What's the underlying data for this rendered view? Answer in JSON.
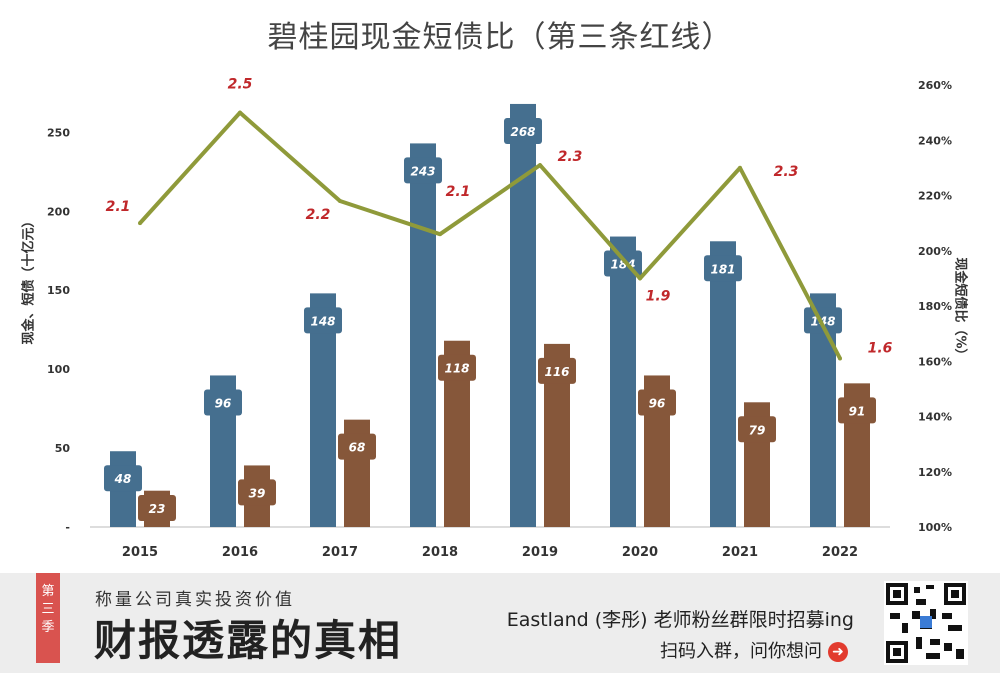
{
  "chart_data": {
    "type": "bar+line",
    "title": "碧桂园现金短债比（第三条红线）",
    "categories": [
      "2015",
      "2016",
      "2017",
      "2018",
      "2019",
      "2020",
      "2021",
      "2022"
    ],
    "series": [
      {
        "values": [
          48,
          96,
          148,
          243,
          268,
          184,
          181,
          148
        ],
        "color": "#456f8f"
      },
      {
        "values": [
          23,
          39,
          68,
          118,
          116,
          96,
          79,
          91
        ],
        "color": "#86573a"
      },
      {
        "values": [
          2.1,
          2.5,
          2.2,
          2.1,
          2.3,
          1.9,
          2.3,
          1.6
        ],
        "axis_values": [
          2.1,
          2.5,
          2.18,
          2.06,
          2.31,
          1.9,
          2.3,
          1.61
        ],
        "color": "#8f9a3a"
      }
    ],
    "ylabel_left": "现金、短债（十亿元）",
    "ylabel_right": "现金短债比（%）",
    "y_left_ticks": [
      "-",
      "50",
      "100",
      "150",
      "200",
      "250"
    ],
    "ylim_left": [
      0,
      280
    ],
    "y_right_ticks": [
      "100%",
      "120%",
      "140%",
      "160%",
      "180%",
      "200%",
      "220%",
      "240%",
      "260%"
    ],
    "ylim_right": [
      1.0,
      2.6
    ]
  },
  "footer": {
    "season": "第三季",
    "slogan": "称量公司真实投资价值",
    "brand": "财报透露的真相",
    "promo": "Eastland (李彤) 老师粉丝群限时招募ing",
    "scan": "扫码入群，问你想问",
    "arrow_icon": "arrow-right-circle-icon"
  }
}
